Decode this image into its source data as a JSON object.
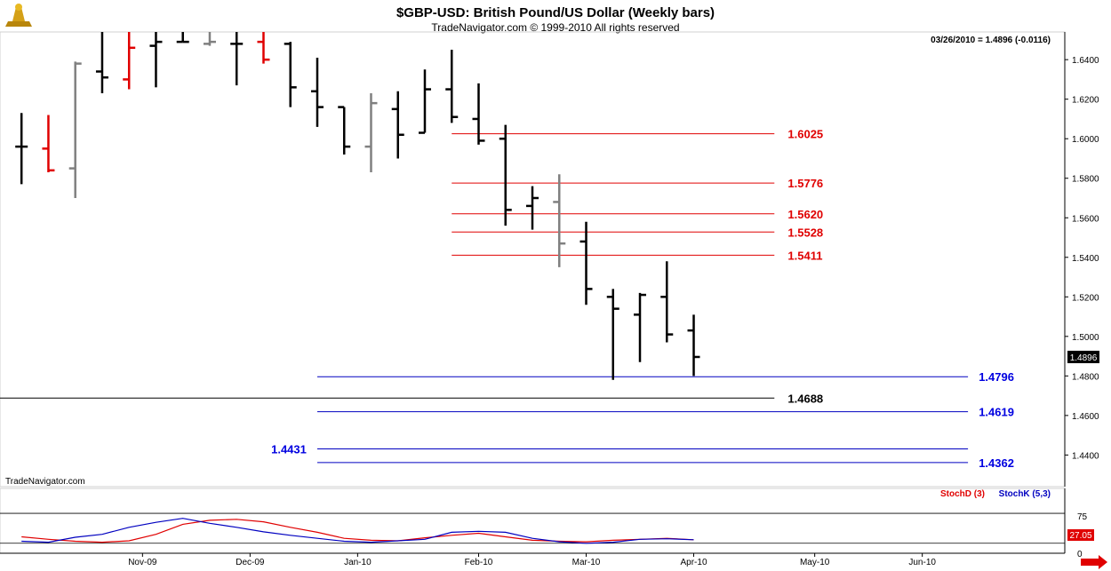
{
  "header": {
    "title": "$GBP-USD:  British Pound/US Dollar  (Weekly bars)",
    "subtitle": "TradeNavigator.com © 1999-2010 All rights reserved",
    "readout": "03/26/2010 = 1.4896 (-0.0116)",
    "watermark": "TradeNavigator.com"
  },
  "chart_data": [
    {
      "type": "ohlc",
      "title": "$GBP-USD:  British Pound/US Dollar  (Weekly bars)",
      "ylim": [
        1.424,
        1.654
      ],
      "y_ticks": [
        "1.6400",
        "1.6200",
        "1.6000",
        "1.5800",
        "1.5600",
        "1.5400",
        "1.5200",
        "1.5000",
        "1.4800",
        "1.4600",
        "1.4400"
      ],
      "last_price_label": "1.4896",
      "x_tick_labels": [
        "Nov-09",
        "Dec-09",
        "Jan-10",
        "Feb-10",
        "Mar-10",
        "Apr-10",
        "May-10",
        "Jun-10"
      ],
      "x_tick_weeks": [
        4.5,
        8.5,
        12.5,
        17.0,
        21.0,
        25.0,
        29.5,
        33.5
      ],
      "xlim": [
        -0.8,
        38.8
      ],
      "bars": [
        {
          "week": 0,
          "open": 1.596,
          "high": 1.613,
          "low": 1.577,
          "close": 1.596,
          "color": "#000000"
        },
        {
          "week": 1,
          "open": 1.595,
          "high": 1.612,
          "low": 1.583,
          "close": 1.584,
          "color": "#e00000"
        },
        {
          "week": 2,
          "open": 1.585,
          "high": 1.639,
          "low": 1.57,
          "close": 1.638,
          "color": "#808080"
        },
        {
          "week": 3,
          "open": 1.634,
          "high": 1.658,
          "low": 1.623,
          "close": 1.631,
          "color": "#000000"
        },
        {
          "week": 4,
          "open": 1.63,
          "high": 1.658,
          "low": 1.625,
          "close": 1.646,
          "color": "#e00000"
        },
        {
          "week": 5,
          "open": 1.647,
          "high": 1.658,
          "low": 1.626,
          "close": 1.649,
          "color": "#000000"
        },
        {
          "week": 6,
          "open": 1.649,
          "high": 1.658,
          "low": 1.649,
          "close": 1.649,
          "color": "#000000"
        },
        {
          "week": 7,
          "open": 1.648,
          "high": 1.658,
          "low": 1.647,
          "close": 1.649,
          "color": "#808080"
        },
        {
          "week": 8,
          "open": 1.648,
          "high": 1.658,
          "low": 1.627,
          "close": 1.648,
          "color": "#000000"
        },
        {
          "week": 9,
          "open": 1.649,
          "high": 1.658,
          "low": 1.638,
          "close": 1.64,
          "color": "#e00000"
        },
        {
          "week": 10,
          "open": 1.648,
          "high": 1.649,
          "low": 1.616,
          "close": 1.626,
          "color": "#000000"
        },
        {
          "week": 11,
          "open": 1.624,
          "high": 1.641,
          "low": 1.606,
          "close": 1.616,
          "color": "#000000"
        },
        {
          "week": 12,
          "open": 1.616,
          "high": 1.616,
          "low": 1.592,
          "close": 1.596,
          "color": "#000000"
        },
        {
          "week": 13,
          "open": 1.596,
          "high": 1.623,
          "low": 1.583,
          "close": 1.618,
          "color": "#808080"
        },
        {
          "week": 14,
          "open": 1.615,
          "high": 1.624,
          "low": 1.59,
          "close": 1.602,
          "color": "#000000"
        },
        {
          "week": 15,
          "open": 1.603,
          "high": 1.635,
          "low": 1.603,
          "close": 1.625,
          "color": "#000000"
        },
        {
          "week": 16,
          "open": 1.625,
          "high": 1.645,
          "low": 1.608,
          "close": 1.611,
          "color": "#000000"
        },
        {
          "week": 17,
          "open": 1.61,
          "high": 1.628,
          "low": 1.597,
          "close": 1.599,
          "color": "#000000"
        },
        {
          "week": 18,
          "open": 1.6,
          "high": 1.607,
          "low": 1.556,
          "close": 1.564,
          "color": "#000000"
        },
        {
          "week": 19,
          "open": 1.566,
          "high": 1.576,
          "low": 1.554,
          "close": 1.57,
          "color": "#000000"
        },
        {
          "week": 20,
          "open": 1.568,
          "high": 1.582,
          "low": 1.535,
          "close": 1.547,
          "color": "#808080"
        },
        {
          "week": 21,
          "open": 1.548,
          "high": 1.558,
          "low": 1.516,
          "close": 1.524,
          "color": "#000000"
        },
        {
          "week": 22,
          "open": 1.52,
          "high": 1.524,
          "low": 1.478,
          "close": 1.514,
          "color": "#000000"
        },
        {
          "week": 23,
          "open": 1.511,
          "high": 1.522,
          "low": 1.487,
          "close": 1.521,
          "color": "#000000"
        },
        {
          "week": 24,
          "open": 1.52,
          "high": 1.538,
          "low": 1.497,
          "close": 1.501,
          "color": "#000000"
        },
        {
          "week": 25,
          "open": 1.503,
          "high": 1.511,
          "low": 1.48,
          "close": 1.4896,
          "color": "#000000"
        }
      ],
      "levels": [
        {
          "label": "1.6025",
          "value": 1.6025,
          "color": "#e00000",
          "text_color": "#e00000",
          "x_start_week": 16.0,
          "x_end_week": 28.0,
          "label_week": 28.5,
          "label_anchor": "start"
        },
        {
          "label": "1.5776",
          "value": 1.5776,
          "color": "#e00000",
          "text_color": "#e00000",
          "x_start_week": 16.0,
          "x_end_week": 28.0,
          "label_week": 28.5,
          "label_anchor": "start"
        },
        {
          "label": "1.5620",
          "value": 1.562,
          "color": "#e00000",
          "text_color": "#e00000",
          "x_start_week": 16.0,
          "x_end_week": 28.0,
          "label_week": 28.5,
          "label_anchor": "start"
        },
        {
          "label": "1.5528",
          "value": 1.5528,
          "color": "#e00000",
          "text_color": "#e00000",
          "x_start_week": 16.0,
          "x_end_week": 28.0,
          "label_week": 28.5,
          "label_anchor": "start"
        },
        {
          "label": "1.5411",
          "value": 1.5411,
          "color": "#e00000",
          "text_color": "#e00000",
          "x_start_week": 16.0,
          "x_end_week": 28.0,
          "label_week": 28.5,
          "label_anchor": "start"
        },
        {
          "label": "1.4796",
          "value": 1.4796,
          "color": "#0000c0",
          "text_color": "#0000e0",
          "x_start_week": 11.0,
          "x_end_week": 35.2,
          "label_week": 35.6,
          "label_anchor": "start"
        },
        {
          "label": "1.4688",
          "value": 1.4688,
          "color": "#000000",
          "text_color": "#000000",
          "x_start_week": -0.8,
          "x_end_week": 28.0,
          "label_week": 28.5,
          "label_anchor": "start"
        },
        {
          "label": "1.4619",
          "value": 1.4619,
          "color": "#0000c0",
          "text_color": "#0000e0",
          "x_start_week": 11.0,
          "x_end_week": 35.2,
          "label_week": 35.6,
          "label_anchor": "start"
        },
        {
          "label": "1.4431",
          "value": 1.4431,
          "color": "#0000c0",
          "text_color": "#0000e0",
          "x_start_week": 11.0,
          "x_end_week": 35.2,
          "label_week": 10.6,
          "label_anchor": "end"
        },
        {
          "label": "1.4362",
          "value": 1.4362,
          "color": "#0000c0",
          "text_color": "#0000e0",
          "x_start_week": 11.0,
          "x_end_week": 35.2,
          "label_week": 35.6,
          "label_anchor": "start"
        }
      ]
    },
    {
      "type": "line",
      "title": "",
      "ylim": [
        0,
        130
      ],
      "y_tick_labels": [
        "75",
        "0"
      ],
      "reference_levels": [
        80,
        20
      ],
      "last_value_label": "27.05",
      "series": [
        {
          "name": "StochD (3)",
          "color": "#e00000",
          "x": [
            0,
            1,
            2,
            3,
            4,
            5,
            6,
            7,
            8,
            9,
            10,
            11,
            12,
            13,
            14,
            15,
            16,
            17,
            18,
            19,
            20,
            21,
            22,
            23,
            24,
            25
          ],
          "values": [
            33,
            28,
            24,
            22,
            25,
            38,
            58,
            66,
            68,
            63,
            52,
            42,
            30,
            26,
            25,
            31,
            36,
            40,
            33,
            26,
            24,
            23,
            26,
            28,
            30,
            27
          ]
        },
        {
          "name": "StochK (5,3)",
          "color": "#0000c0",
          "x": [
            0,
            1,
            2,
            3,
            4,
            5,
            6,
            7,
            8,
            9,
            10,
            11,
            12,
            13,
            14,
            15,
            16,
            17,
            18,
            19,
            20,
            21,
            22,
            23,
            24,
            25
          ],
          "values": [
            24,
            22,
            32,
            38,
            52,
            62,
            70,
            60,
            52,
            43,
            36,
            30,
            24,
            22,
            25,
            28,
            42,
            44,
            42,
            30,
            23,
            20,
            22,
            28,
            29,
            27
          ]
        }
      ]
    }
  ]
}
